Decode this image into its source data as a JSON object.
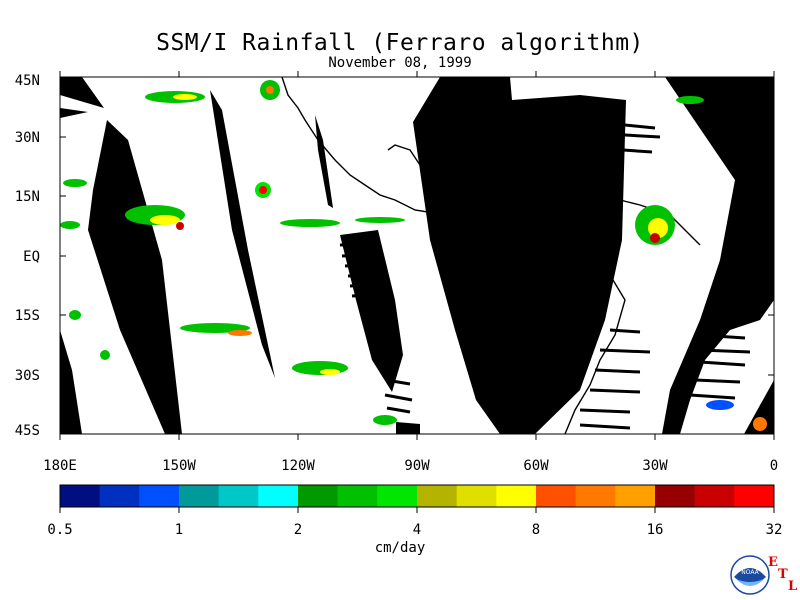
{
  "title": "SSM/I Rainfall (Ferraro algorithm)",
  "date": "November 08, 1999",
  "lat_labels": [
    "45N",
    "30N",
    "15N",
    "EQ",
    "15S",
    "30S",
    "45S"
  ],
  "lon_labels": [
    "180E",
    "150W",
    "120W",
    "90W",
    "60W",
    "30W",
    "0"
  ],
  "colorbar": {
    "colors": [
      "#000f80",
      "#0030c0",
      "#0050ff",
      "#009a9a",
      "#00c8c8",
      "#00ffff",
      "#009a00",
      "#00c000",
      "#00e600",
      "#b4b400",
      "#e0e000",
      "#ffff00",
      "#ff5000",
      "#ff7800",
      "#ffa000",
      "#960000",
      "#c80000",
      "#ff0000"
    ],
    "tick_labels": [
      "0.5",
      "1",
      "2",
      "4",
      "8",
      "16",
      "32"
    ],
    "units": "cm/day"
  },
  "logo": {
    "text": "NOAA",
    "letters": [
      "E",
      "T",
      "L"
    ]
  },
  "colors": {
    "swath_gap": "#000000",
    "coast": "#000000",
    "background": "#ffffff"
  }
}
